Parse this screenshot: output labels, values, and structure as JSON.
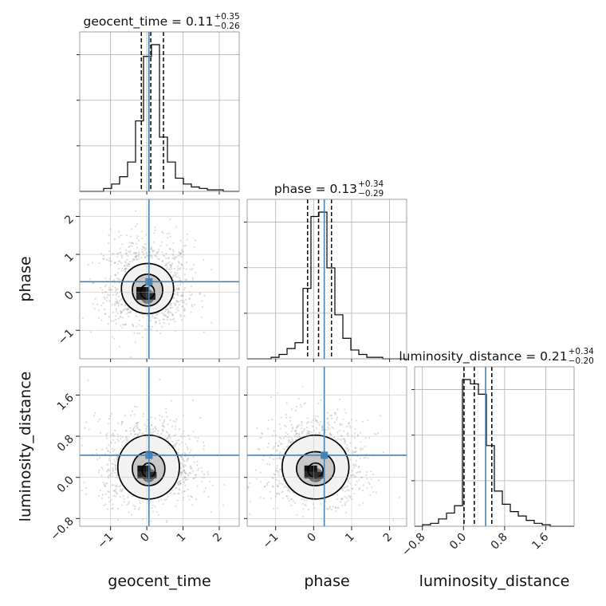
{
  "chart_data": {
    "type": "corner",
    "parameters": [
      "geocent_time",
      "phase",
      "luminosity_distance"
    ],
    "axis_labels": {
      "x": [
        "geocent_time",
        "phase",
        "luminosity_distance"
      ],
      "y": [
        "phase",
        "luminosity_distance"
      ]
    },
    "ranges": {
      "geocent_time": [
        -1.85,
        2.55
      ],
      "phase": [
        -1.75,
        2.45
      ],
      "luminosity_distance": [
        -0.95,
        2.15
      ]
    },
    "ticks": {
      "geocent_time": [
        -1,
        0,
        1,
        2
      ],
      "phase": [
        -1,
        0,
        1,
        2
      ],
      "luminosity_distance": [
        -0.8,
        0.0,
        0.8,
        1.6
      ]
    },
    "tick_labels": {
      "geocent_time": [
        "−1",
        "0",
        "1",
        "2"
      ],
      "phase": [
        "−1",
        "0",
        "1",
        "2"
      ],
      "luminosity_distance": [
        "−0.8",
        "0.0",
        "0.8",
        "1.6"
      ]
    },
    "summaries": {
      "geocent_time": {
        "prefix": "geocent_time = 0.11",
        "plus": "+0.35",
        "minus": "−0.26",
        "median": 0.11,
        "q_low": -0.15,
        "q_high": 0.46
      },
      "phase": {
        "prefix": "phase = 0.13",
        "plus": "+0.34",
        "minus": "−0.29",
        "median": 0.13,
        "q_low": -0.16,
        "q_high": 0.47
      },
      "luminosity_distance": {
        "prefix": "luminosity_distance = 0.21",
        "plus": "+0.34",
        "minus": "−0.20",
        "median": 0.21,
        "q_low": 0.01,
        "q_high": 0.55
      }
    },
    "truths": {
      "geocent_time": 0.06,
      "phase": 0.28,
      "luminosity_distance": 0.43
    },
    "hist_1d": {
      "geocent_time": {
        "edges": [
          -1.85,
          -1.63,
          -1.41,
          -1.19,
          -0.97,
          -0.75,
          -0.53,
          -0.31,
          -0.09,
          0.13,
          0.35,
          0.57,
          0.79,
          1.01,
          1.23,
          1.45,
          1.67,
          1.89,
          2.11,
          2.33,
          2.55
        ],
        "counts": [
          0,
          0,
          0,
          0.02,
          0.05,
          0.1,
          0.2,
          0.48,
          0.92,
          1.0,
          0.37,
          0.2,
          0.09,
          0.05,
          0.03,
          0.02,
          0.01,
          0.01,
          0,
          0
        ]
      },
      "phase": {
        "edges": [
          -1.75,
          -1.54,
          -1.33,
          -1.12,
          -0.91,
          -0.7,
          -0.49,
          -0.28,
          -0.07,
          0.14,
          0.35,
          0.56,
          0.77,
          0.98,
          1.19,
          1.4,
          1.61,
          1.82,
          2.03,
          2.24,
          2.45
        ],
        "counts": [
          0,
          0,
          0,
          0.01,
          0.03,
          0.07,
          0.11,
          0.48,
          0.97,
          1.0,
          0.62,
          0.3,
          0.14,
          0.06,
          0.03,
          0.01,
          0.01,
          0,
          0,
          0
        ]
      },
      "luminosity_distance": {
        "edges": [
          -0.95,
          -0.795,
          -0.64,
          -0.485,
          -0.33,
          -0.175,
          -0.02,
          0.135,
          0.29,
          0.445,
          0.6,
          0.755,
          0.91,
          1.065,
          1.22,
          1.375,
          1.53,
          1.685,
          1.84,
          1.995,
          2.15
        ],
        "counts": [
          0,
          0.01,
          0.02,
          0.05,
          0.09,
          0.14,
          1.0,
          0.97,
          0.9,
          0.55,
          0.24,
          0.15,
          0.1,
          0.07,
          0.04,
          0.02,
          0.01,
          0,
          0,
          0
        ]
      }
    },
    "hist_2d": {
      "phase_vs_geocent_time": {
        "center": [
          0.02,
          0.1
        ],
        "contour_radii": [
          [
            0.19,
            0.19
          ],
          [
            0.42,
            0.42
          ],
          [
            0.72,
            0.66
          ]
        ],
        "scatter_sigma": [
          0.5,
          0.5
        ]
      },
      "luminosity_distance_vs_geocent_time": {
        "center": [
          0.05,
          0.2
        ],
        "contour_radii": [
          [
            0.18,
            0.14
          ],
          [
            0.45,
            0.33
          ],
          [
            0.85,
            0.62
          ]
        ],
        "scatter_sigma": [
          0.55,
          0.38
        ]
      },
      "luminosity_distance_vs_phase": {
        "center": [
          0.05,
          0.2
        ],
        "contour_radii": [
          [
            0.2,
            0.14
          ],
          [
            0.5,
            0.33
          ],
          [
            0.88,
            0.62
          ]
        ],
        "scatter_sigma": [
          0.55,
          0.38
        ]
      }
    },
    "grid": true,
    "colors": {
      "truth": "#4682b4",
      "hist": "#000000",
      "quantile": "#000000",
      "grid": "#b0b0b0",
      "scatter": "#9a9a9a"
    }
  }
}
